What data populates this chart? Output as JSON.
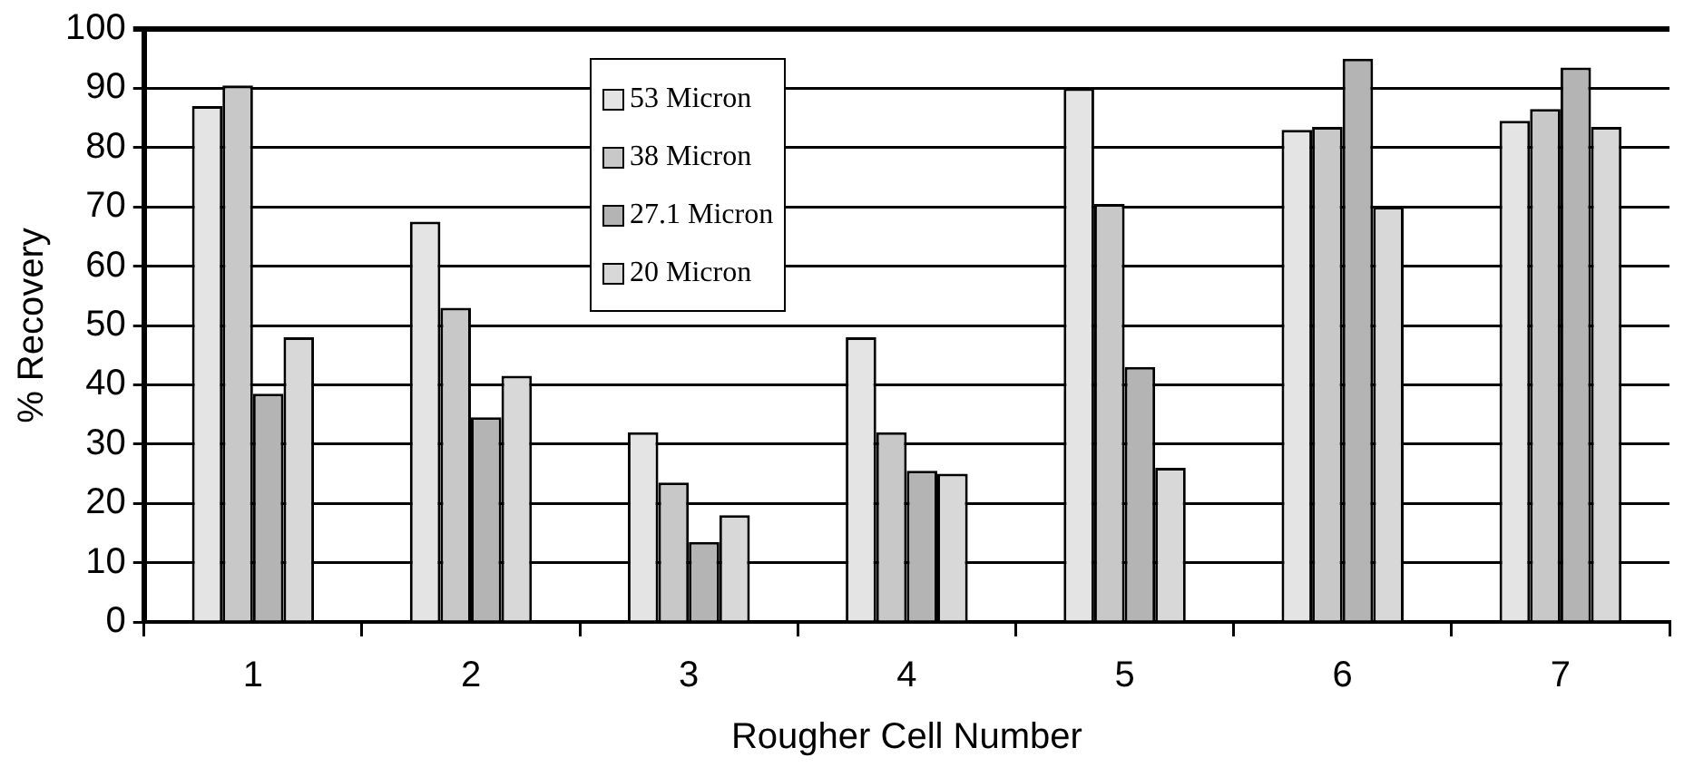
{
  "chart_data": {
    "type": "bar",
    "xlabel": "Rougher Cell Number",
    "ylabel": "% Recovery",
    "categories": [
      "1",
      "2",
      "3",
      "4",
      "5",
      "6",
      "7"
    ],
    "series": [
      {
        "name": "53 Micron",
        "color": "#e4e4e4",
        "values": [
          87,
          67.5,
          32,
          48,
          90,
          83,
          84.5
        ]
      },
      {
        "name": "38 Micron",
        "color": "#c8c8c8",
        "values": [
          90.5,
          53,
          23.5,
          32,
          70.5,
          83.5,
          86.5
        ]
      },
      {
        "name": "27.1 Micron",
        "color": "#b4b4b4",
        "values": [
          38.5,
          34.5,
          13.5,
          25.5,
          43,
          95,
          93.5
        ]
      },
      {
        "name": "20 Micron",
        "color": "#d8d8d8",
        "values": [
          48,
          41.5,
          18,
          25,
          26,
          70,
          83.5
        ]
      }
    ],
    "ylim": [
      0,
      100
    ],
    "yticks": [
      0,
      10,
      20,
      30,
      40,
      50,
      60,
      70,
      80,
      90,
      100
    ],
    "grid": "y",
    "legend": "top"
  }
}
